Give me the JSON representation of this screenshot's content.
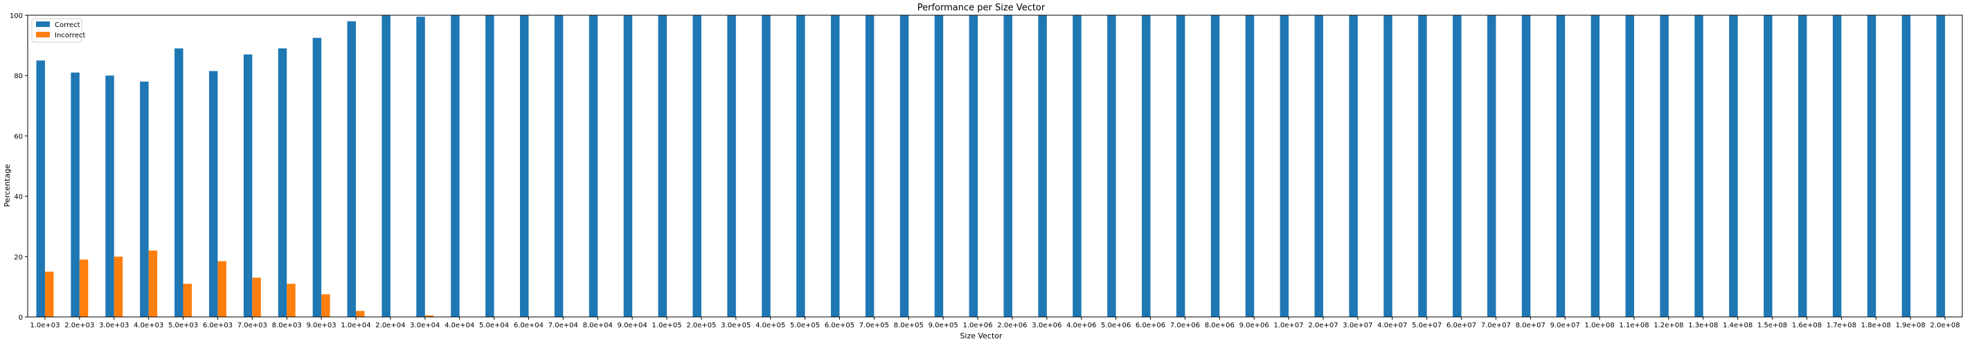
{
  "chart_data": {
    "type": "bar",
    "title": "Performance per Size Vector",
    "xlabel": "Size Vector",
    "ylabel": "Percentage",
    "ylim": [
      0,
      100
    ],
    "yticks": [
      0,
      20,
      40,
      60,
      80,
      100
    ],
    "grid": false,
    "legend_position": "top-left",
    "categories": [
      "1.0e+03",
      "2.0e+03",
      "3.0e+03",
      "4.0e+03",
      "5.0e+03",
      "6.0e+03",
      "7.0e+03",
      "8.0e+03",
      "9.0e+03",
      "1.0e+04",
      "2.0e+04",
      "3.0e+04",
      "4.0e+04",
      "5.0e+04",
      "6.0e+04",
      "7.0e+04",
      "8.0e+04",
      "9.0e+04",
      "1.0e+05",
      "2.0e+05",
      "3.0e+05",
      "4.0e+05",
      "5.0e+05",
      "6.0e+05",
      "7.0e+05",
      "8.0e+05",
      "9.0e+05",
      "1.0e+06",
      "2.0e+06",
      "3.0e+06",
      "4.0e+06",
      "5.0e+06",
      "6.0e+06",
      "7.0e+06",
      "8.0e+06",
      "9.0e+06",
      "1.0e+07",
      "2.0e+07",
      "3.0e+07",
      "4.0e+07",
      "5.0e+07",
      "6.0e+07",
      "7.0e+07",
      "8.0e+07",
      "9.0e+07",
      "1.0e+08",
      "1.1e+08",
      "1.2e+08",
      "1.3e+08",
      "1.4e+08",
      "1.5e+08",
      "1.6e+08",
      "1.7e+08",
      "1.8e+08",
      "1.9e+08",
      "2.0e+08"
    ],
    "series": [
      {
        "name": "Correct",
        "color": "#1f77b4",
        "values": [
          85,
          81,
          80,
          78,
          89,
          81.5,
          87,
          89,
          92.5,
          98,
          100,
          99.5,
          100,
          100,
          100,
          100,
          100,
          100,
          100,
          100,
          100,
          100,
          100,
          100,
          100,
          100,
          100,
          100,
          100,
          100,
          100,
          100,
          100,
          100,
          100,
          100,
          100,
          100,
          100,
          100,
          100,
          100,
          100,
          100,
          100,
          100,
          100,
          100,
          100,
          100,
          100,
          100,
          100,
          100,
          100,
          100
        ]
      },
      {
        "name": "Incorrect",
        "color": "#ff7f0e",
        "values": [
          15,
          19,
          20,
          22,
          11,
          18.5,
          13,
          11,
          7.5,
          2,
          0,
          0.5,
          0,
          0,
          0,
          0,
          0,
          0,
          0,
          0,
          0,
          0,
          0,
          0,
          0,
          0,
          0,
          0,
          0,
          0,
          0,
          0,
          0,
          0,
          0,
          0,
          0,
          0,
          0,
          0,
          0,
          0,
          0,
          0,
          0,
          0,
          0,
          0,
          0,
          0,
          0,
          0,
          0,
          0,
          0,
          0
        ]
      }
    ]
  }
}
